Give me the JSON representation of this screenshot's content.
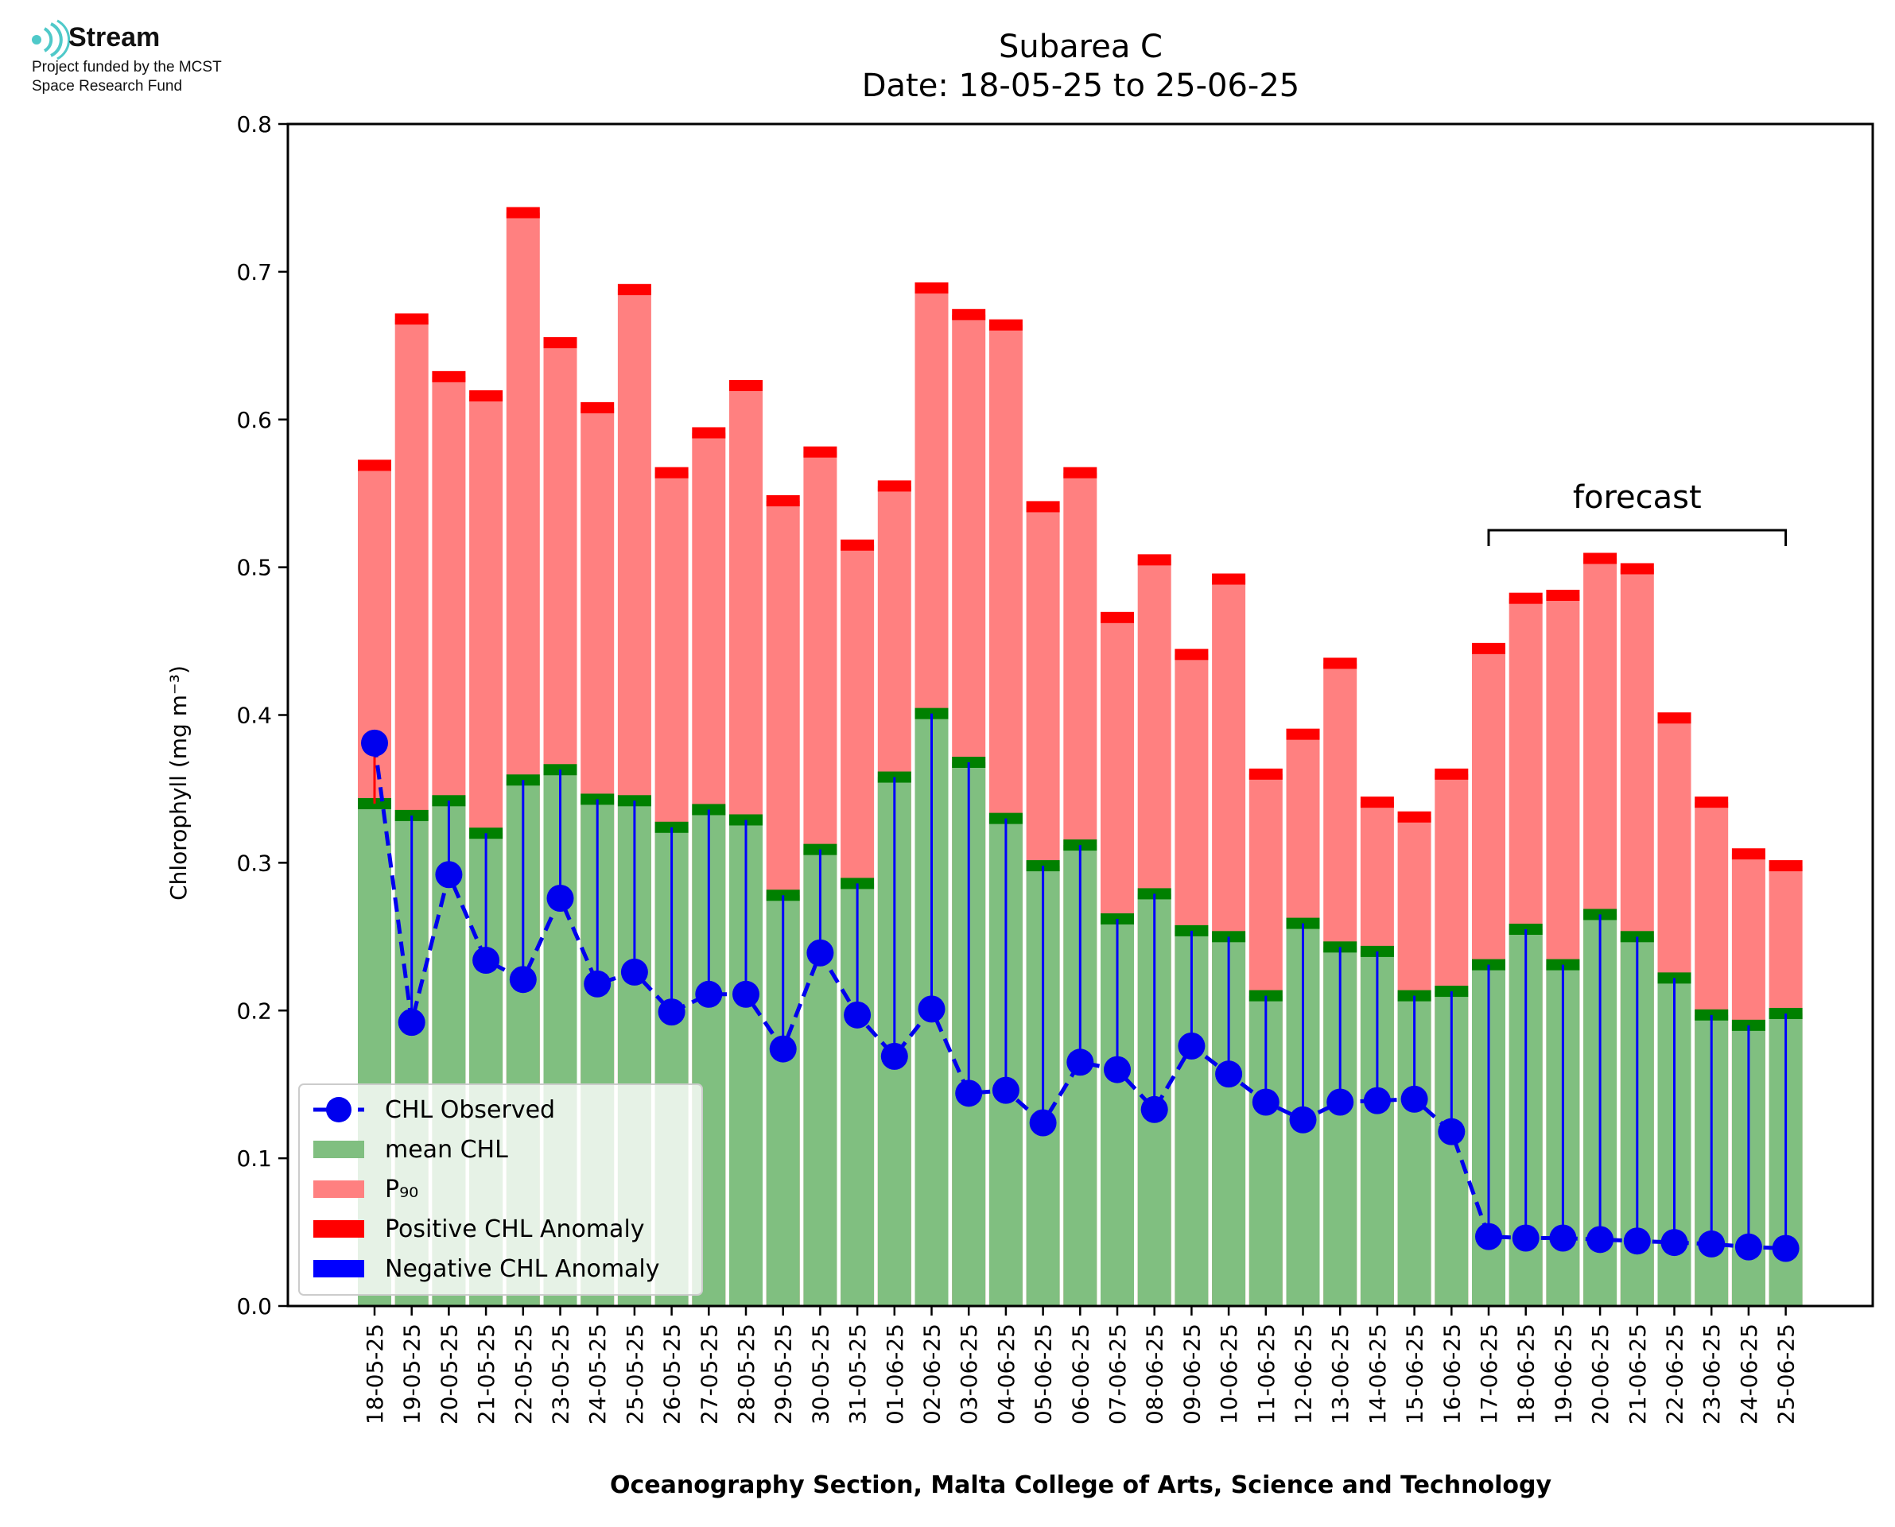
{
  "logo": {
    "name": "Stream",
    "line1": "Project funded by the MCST",
    "line2": "Space Research Fund"
  },
  "colors": {
    "mean": "#80bf80",
    "mean_edge": "#008000",
    "p90": "#ff8080",
    "p90_edge": "#ff0000",
    "observed": "#0000ee",
    "positive_anomaly": "#ff0000",
    "negative_anomaly": "#0000ff",
    "logo_accent": "#4fc9c9"
  },
  "chart_data": {
    "type": "bar",
    "title": "Subarea C",
    "subtitle": "Date: 18-05-25 to 25-06-25",
    "xlabel": "Oceanography Section, Malta College of Arts, Science and Technology",
    "ylabel": "Chlorophyll (mg m⁻³)",
    "ylim": [
      0,
      0.8
    ],
    "yticks": [
      "0.0",
      "0.1",
      "0.2",
      "0.3",
      "0.4",
      "0.5",
      "0.6",
      "0.7",
      "0.8"
    ],
    "grid": false,
    "legend_position": "lower-left",
    "categories": [
      "18-05-25",
      "19-05-25",
      "20-05-25",
      "21-05-25",
      "22-05-25",
      "23-05-25",
      "24-05-25",
      "25-05-25",
      "26-05-25",
      "27-05-25",
      "28-05-25",
      "29-05-25",
      "30-05-25",
      "31-05-25",
      "01-06-25",
      "02-06-25",
      "03-06-25",
      "04-06-25",
      "05-06-25",
      "06-06-25",
      "07-06-25",
      "08-06-25",
      "09-06-25",
      "10-06-25",
      "11-06-25",
      "12-06-25",
      "13-06-25",
      "14-06-25",
      "15-06-25",
      "16-06-25",
      "17-06-25",
      "18-06-25",
      "19-06-25",
      "20-06-25",
      "21-06-25",
      "22-06-25",
      "23-06-25",
      "24-06-25",
      "25-06-25"
    ],
    "series": [
      {
        "name": "CHL Observed",
        "style": "line-marker-dashed",
        "values": [
          0.381,
          0.192,
          0.292,
          0.234,
          0.221,
          0.276,
          0.218,
          0.226,
          0.199,
          0.211,
          0.211,
          0.174,
          0.239,
          0.197,
          0.169,
          0.201,
          0.144,
          0.146,
          0.124,
          0.165,
          0.16,
          0.133,
          0.176,
          0.157,
          0.138,
          0.126,
          0.138,
          0.139,
          0.14,
          0.118,
          0.047,
          0.046,
          0.046,
          0.045,
          0.044,
          0.043,
          0.042,
          0.04,
          0.039
        ]
      },
      {
        "name": "mean CHL",
        "style": "bar",
        "values": [
          0.34,
          0.332,
          0.342,
          0.32,
          0.356,
          0.363,
          0.343,
          0.342,
          0.324,
          0.336,
          0.329,
          0.278,
          0.309,
          0.286,
          0.358,
          0.401,
          0.368,
          0.33,
          0.298,
          0.312,
          0.262,
          0.279,
          0.254,
          0.25,
          0.21,
          0.259,
          0.243,
          0.24,
          0.21,
          0.213,
          0.231,
          0.255,
          0.231,
          0.265,
          0.25,
          0.222,
          0.197,
          0.19,
          0.198
        ]
      },
      {
        "name": "P₉₀",
        "style": "bar",
        "values": [
          0.569,
          0.668,
          0.629,
          0.616,
          0.74,
          0.652,
          0.608,
          0.688,
          0.564,
          0.591,
          0.623,
          0.545,
          0.578,
          0.515,
          0.555,
          0.689,
          0.671,
          0.664,
          0.541,
          0.564,
          0.466,
          0.505,
          0.441,
          0.492,
          0.36,
          0.387,
          0.435,
          0.341,
          0.331,
          0.36,
          0.445,
          0.479,
          0.481,
          0.506,
          0.499,
          0.398,
          0.341,
          0.306,
          0.298
        ]
      }
    ],
    "legend": [
      "CHL Observed",
      "mean CHL",
      "P₉₀",
      "Positive CHL Anomaly",
      "Negative CHL Anomaly"
    ],
    "forecast": {
      "label": "forecast",
      "from": "17-06-25",
      "to": "25-06-25"
    }
  }
}
